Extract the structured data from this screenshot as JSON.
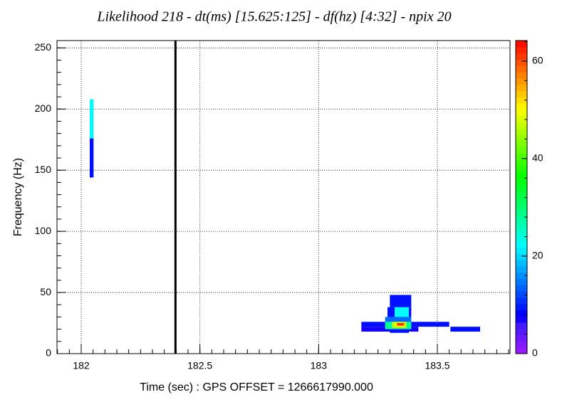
{
  "chart_data": {
    "type": "heatmap",
    "title": "Likelihood 218 - dt(ms) [15.625:125] - df(hz) [4:32] - npix 20",
    "x_label": "Time (sec) : GPS OFFSET = 1266617990.000",
    "y_label": "Frequency (Hz)",
    "xlim": [
      181.898,
      183.806
    ],
    "xticks": [
      182,
      182.5,
      183,
      183.5
    ],
    "ylim": [
      0,
      256
    ],
    "yticks": [
      0,
      50,
      100,
      150,
      200,
      250
    ],
    "zlim": [
      0,
      64.2
    ],
    "zticks": [
      0,
      20,
      40,
      60
    ],
    "grid": true,
    "marker_x": 182.397,
    "cells": [
      [
        182.036,
        182.052,
        144,
        176
      ],
      [
        182.036,
        182.052,
        176,
        208
      ],
      [
        183.3,
        183.39,
        38,
        48
      ],
      [
        183.29,
        183.39,
        30,
        38
      ],
      [
        183.32,
        183.38,
        30,
        38
      ],
      [
        183.28,
        183.39,
        26,
        30
      ],
      [
        183.18,
        183.55,
        22,
        26
      ],
      [
        183.18,
        183.42,
        18,
        22
      ],
      [
        183.555,
        183.68,
        18,
        22
      ],
      [
        183.3,
        183.38,
        17,
        20
      ],
      [
        183.28,
        183.39,
        20,
        26
      ],
      [
        183.31,
        183.37,
        21,
        26
      ],
      [
        183.33,
        183.36,
        23,
        25
      ]
    ],
    "values": [
      9,
      22,
      9,
      9,
      22,
      14,
      9,
      7,
      9,
      9,
      28,
      48,
      62
    ]
  }
}
